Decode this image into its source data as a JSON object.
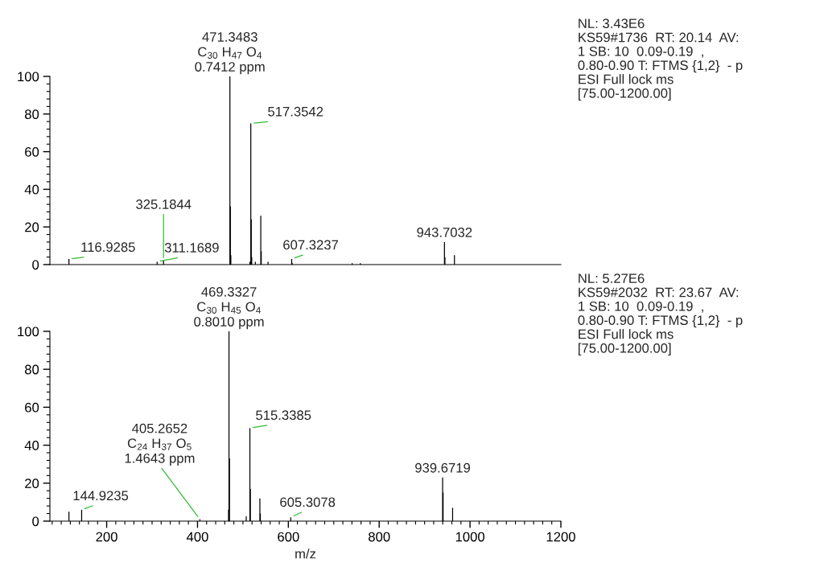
{
  "chart_data": [
    {
      "type": "bar",
      "xlim": [
        75,
        1200
      ],
      "ylim": [
        0,
        100
      ],
      "tick_labels": "y",
      "grid": false,
      "legend": false,
      "yticks": [
        0,
        {
          "value": 4,
          "label": null
        },
        {
          "value": 8,
          "label": null
        },
        {
          "value": 12,
          "label": null
        },
        {
          "value": 16,
          "label": null
        },
        20,
        {
          "value": 24,
          "label": null
        },
        {
          "value": 28,
          "label": null
        },
        {
          "value": 32,
          "label": null
        },
        {
          "value": 36,
          "label": null
        },
        40,
        {
          "value": 44,
          "label": null
        },
        {
          "value": 48,
          "label": null
        },
        {
          "value": 52,
          "label": null
        },
        {
          "value": 56,
          "label": null
        },
        60,
        {
          "value": 64,
          "label": null
        },
        {
          "value": 68,
          "label": null
        },
        {
          "value": 72,
          "label": null
        },
        {
          "value": 76,
          "label": null
        },
        80,
        {
          "value": 84,
          "label": null
        },
        {
          "value": 88,
          "label": null
        },
        {
          "value": 92,
          "label": null
        },
        {
          "value": 96,
          "label": null
        },
        100
      ],
      "series": [
        {
          "color": "#000000",
          "x": [
            116.93,
            311.17,
            325.18,
            471.35,
            472.35,
            473.36,
            515.34,
            517.35,
            518.36,
            519.36,
            527.3,
            539.33,
            540.34,
            555.3,
            607.32,
            608.33,
            740.5,
            758.5,
            943.7,
            944.71,
            965.69
          ],
          "values": [
            3,
            1.5,
            2,
            100,
            31,
            5,
            1.5,
            75,
            24,
            4,
            1.5,
            26,
            7,
            1.5,
            3,
            1,
            0.8,
            0.8,
            12,
            4,
            5
          ]
        }
      ],
      "annotations": [
        {
          "text": "471.3483\nC$_{30}$ H$_{47}$ O$_{4}$\n0.7412 ppm",
          "x": 471.35,
          "y": 100
        },
        {
          "text": "517.3542",
          "x": 517.35,
          "y": 75
        },
        {
          "text": "116.9285",
          "x": 116.93,
          "y": 3
        },
        {
          "text": "311.1689",
          "x": 311.17,
          "y": 1.5
        },
        {
          "text": "325.1844",
          "x": 325.18,
          "y": 2
        },
        {
          "text": "607.3237",
          "x": 607.32,
          "y": 3
        },
        {
          "text": "943.7032",
          "x": 943.7,
          "y": 12
        },
        "NL: 3.43E6\nKS59#1736  RT: 20.14  AV:\n1 SB: 10  0.09-0.19  ,\n0.80-0.90 T: FTMS {1,2}  - p\nESI Full lock ms\n[75.00-1200.00]"
      ]
    },
    {
      "type": "bar",
      "xlim": [
        75,
        1200
      ],
      "ylim": [
        0,
        100
      ],
      "xlabel": "m/z",
      "grid": false,
      "legend": false,
      "xticks": [
        {
          "value": 80,
          "label": null
        },
        {
          "value": 100,
          "label": null
        },
        {
          "value": 120,
          "label": null
        },
        {
          "value": 140,
          "label": null
        },
        {
          "value": 160,
          "label": null
        },
        {
          "value": 180,
          "label": null
        },
        200,
        {
          "value": 220,
          "label": null
        },
        {
          "value": 240,
          "label": null
        },
        {
          "value": 260,
          "label": null
        },
        {
          "value": 280,
          "label": null
        },
        {
          "value": 300,
          "label": null
        },
        {
          "value": 320,
          "label": null
        },
        {
          "value": 340,
          "label": null
        },
        {
          "value": 360,
          "label": null
        },
        {
          "value": 380,
          "label": null
        },
        400,
        {
          "value": 420,
          "label": null
        },
        {
          "value": 440,
          "label": null
        },
        {
          "value": 460,
          "label": null
        },
        {
          "value": 480,
          "label": null
        },
        {
          "value": 500,
          "label": null
        },
        {
          "value": 520,
          "label": null
        },
        {
          "value": 540,
          "label": null
        },
        {
          "value": 560,
          "label": null
        },
        {
          "value": 580,
          "label": null
        },
        600,
        {
          "value": 620,
          "label": null
        },
        {
          "value": 640,
          "label": null
        },
        {
          "value": 660,
          "label": null
        },
        {
          "value": 680,
          "label": null
        },
        {
          "value": 700,
          "label": null
        },
        {
          "value": 720,
          "label": null
        },
        {
          "value": 740,
          "label": null
        },
        {
          "value": 760,
          "label": null
        },
        {
          "value": 780,
          "label": null
        },
        800,
        {
          "value": 820,
          "label": null
        },
        {
          "value": 840,
          "label": null
        },
        {
          "value": 860,
          "label": null
        },
        {
          "value": 880,
          "label": null
        },
        {
          "value": 900,
          "label": null
        },
        {
          "value": 920,
          "label": null
        },
        {
          "value": 940,
          "label": null
        },
        {
          "value": 960,
          "label": null
        },
        {
          "value": 980,
          "label": null
        },
        1000,
        {
          "value": 1020,
          "label": null
        },
        {
          "value": 1040,
          "label": null
        },
        {
          "value": 1060,
          "label": null
        },
        {
          "value": 1080,
          "label": null
        },
        {
          "value": 1100,
          "label": null
        },
        {
          "value": 1120,
          "label": null
        },
        {
          "value": 1140,
          "label": null
        },
        {
          "value": 1160,
          "label": null
        },
        {
          "value": 1180,
          "label": null
        },
        1200
      ],
      "yticks": [
        0,
        {
          "value": 4,
          "label": null
        },
        {
          "value": 8,
          "label": null
        },
        {
          "value": 12,
          "label": null
        },
        {
          "value": 16,
          "label": null
        },
        20,
        {
          "value": 24,
          "label": null
        },
        {
          "value": 28,
          "label": null
        },
        {
          "value": 32,
          "label": null
        },
        {
          "value": 36,
          "label": null
        },
        40,
        {
          "value": 44,
          "label": null
        },
        {
          "value": 48,
          "label": null
        },
        {
          "value": 52,
          "label": null
        },
        {
          "value": 56,
          "label": null
        },
        60,
        {
          "value": 64,
          "label": null
        },
        {
          "value": 68,
          "label": null
        },
        {
          "value": 72,
          "label": null
        },
        {
          "value": 76,
          "label": null
        },
        80,
        {
          "value": 84,
          "label": null
        },
        {
          "value": 88,
          "label": null
        },
        {
          "value": 92,
          "label": null
        },
        {
          "value": 96,
          "label": null
        },
        100
      ],
      "series": [
        {
          "color": "#000000",
          "x": [
            116.92,
            144.92,
            405.27,
            468.33,
            469.33,
            470.34,
            507.3,
            515.34,
            516.34,
            537.32,
            538.33,
            605.31,
            939.67,
            940.68,
            961.66
          ],
          "values": [
            5,
            6,
            1,
            6,
            100,
            33,
            2.5,
            49,
            17,
            12,
            4,
            2,
            23,
            15,
            7
          ]
        }
      ],
      "annotations": [
        {
          "text": "469.3327\nC$_{30}$ H$_{45}$ O$_{4}$\n0.8010 ppm",
          "x": 469.33,
          "y": 100
        },
        {
          "text": "515.3385",
          "x": 515.34,
          "y": 49
        },
        {
          "text": "405.2652\nC$_{24}$ H$_{37}$ O$_{5}$\n1.4643 ppm",
          "x": 405.27,
          "y": 1
        },
        {
          "text": "144.9235",
          "x": 144.92,
          "y": 6
        },
        {
          "text": "605.3078",
          "x": 605.31,
          "y": 2
        },
        {
          "text": "939.6719",
          "x": 939.67,
          "y": 23
        },
        "NL: 5.27E6\nKS59#2032  RT: 23.67  AV:\n1 SB: 10  0.09-0.19  ,\n0.80-0.90 T: FTMS {1,2}  - p\nESI Full lock ms\n[75.00-1200.00]"
      ]
    }
  ]
}
